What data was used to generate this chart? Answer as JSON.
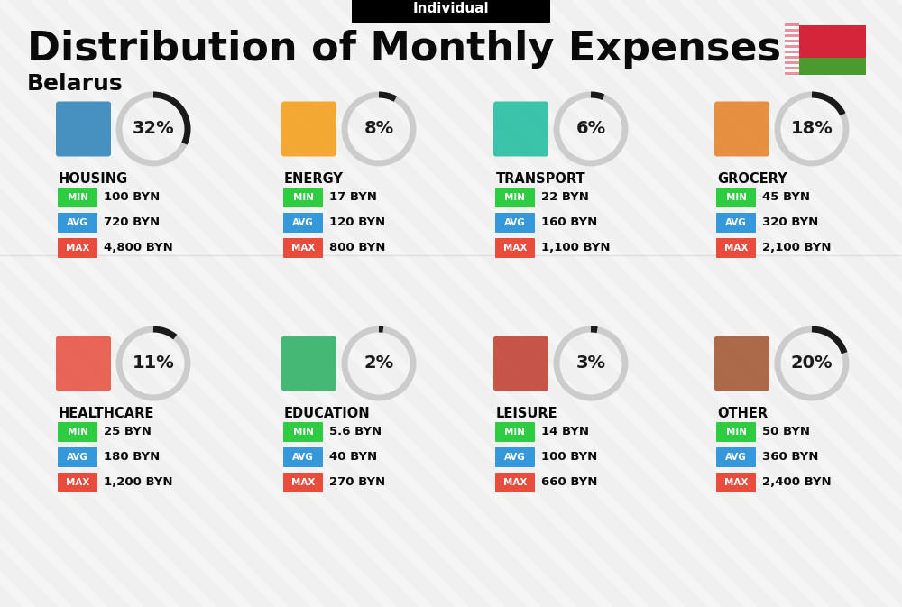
{
  "title": "Distribution of Monthly Expenses",
  "subtitle": "Individual",
  "country": "Belarus",
  "bg_color": "#f0f0f0",
  "title_color": "#0a0a0a",
  "categories": [
    {
      "name": "HOUSING",
      "pct": 32,
      "min_val": "100 BYN",
      "avg_val": "720 BYN",
      "max_val": "4,800 BYN",
      "row": 0,
      "col": 0
    },
    {
      "name": "ENERGY",
      "pct": 8,
      "min_val": "17 BYN",
      "avg_val": "120 BYN",
      "max_val": "800 BYN",
      "row": 0,
      "col": 1
    },
    {
      "name": "TRANSPORT",
      "pct": 6,
      "min_val": "22 BYN",
      "avg_val": "160 BYN",
      "max_val": "1,100 BYN",
      "row": 0,
      "col": 2
    },
    {
      "name": "GROCERY",
      "pct": 18,
      "min_val": "45 BYN",
      "avg_val": "320 BYN",
      "max_val": "2,100 BYN",
      "row": 0,
      "col": 3
    },
    {
      "name": "HEALTHCARE",
      "pct": 11,
      "min_val": "25 BYN",
      "avg_val": "180 BYN",
      "max_val": "1,200 BYN",
      "row": 1,
      "col": 0
    },
    {
      "name": "EDUCATION",
      "pct": 2,
      "min_val": "5.6 BYN",
      "avg_val": "40 BYN",
      "max_val": "270 BYN",
      "row": 1,
      "col": 1
    },
    {
      "name": "LEISURE",
      "pct": 3,
      "min_val": "14 BYN",
      "avg_val": "100 BYN",
      "max_val": "660 BYN",
      "row": 1,
      "col": 2
    },
    {
      "name": "OTHER",
      "pct": 20,
      "min_val": "50 BYN",
      "avg_val": "360 BYN",
      "max_val": "2,400 BYN",
      "row": 1,
      "col": 3
    }
  ],
  "min_color": "#2ecc40",
  "avg_color": "#3498db",
  "max_color": "#e74c3c",
  "label_colors": {
    "MIN": "#2ecc40",
    "AVG": "#3498db",
    "MAX": "#e74c3c"
  },
  "circle_color_dark": "#1a1a1a",
  "circle_color_light": "#cccccc",
  "flag_red": "#d4253a",
  "flag_green": "#4b9a2e"
}
